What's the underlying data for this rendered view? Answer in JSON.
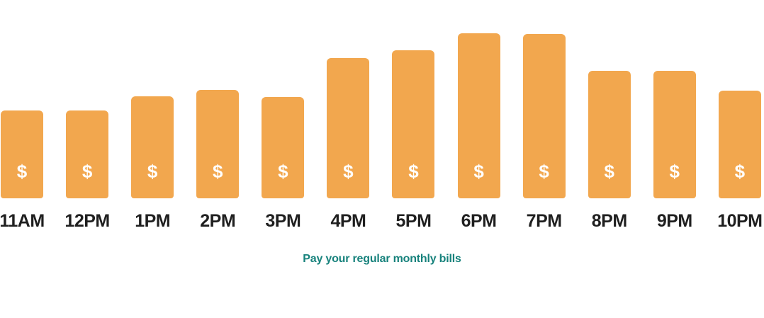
{
  "chart_data": {
    "type": "bar",
    "title": "",
    "caption": "Pay your regular monthly bills",
    "categories": [
      "11AM",
      "12PM",
      "1PM",
      "2PM",
      "3PM",
      "4PM",
      "5PM",
      "6PM",
      "7PM",
      "8PM",
      "9PM",
      "10PM"
    ],
    "values": [
      124,
      124,
      144,
      153,
      143,
      198,
      209,
      233,
      232,
      180,
      180,
      152
    ],
    "value_unit": "relative bar height in px (no y-axis shown)",
    "ylim": [
      0,
      233
    ],
    "bar_symbol": "$",
    "bar_color": "#F2A74E",
    "symbol_color": "#FFFFFF",
    "x_label_color": "#1F1F1F",
    "caption_color": "#17827C",
    "xlabel": "",
    "ylabel": "",
    "grid": false,
    "legend": "none",
    "x_labels_position": "bottom"
  }
}
